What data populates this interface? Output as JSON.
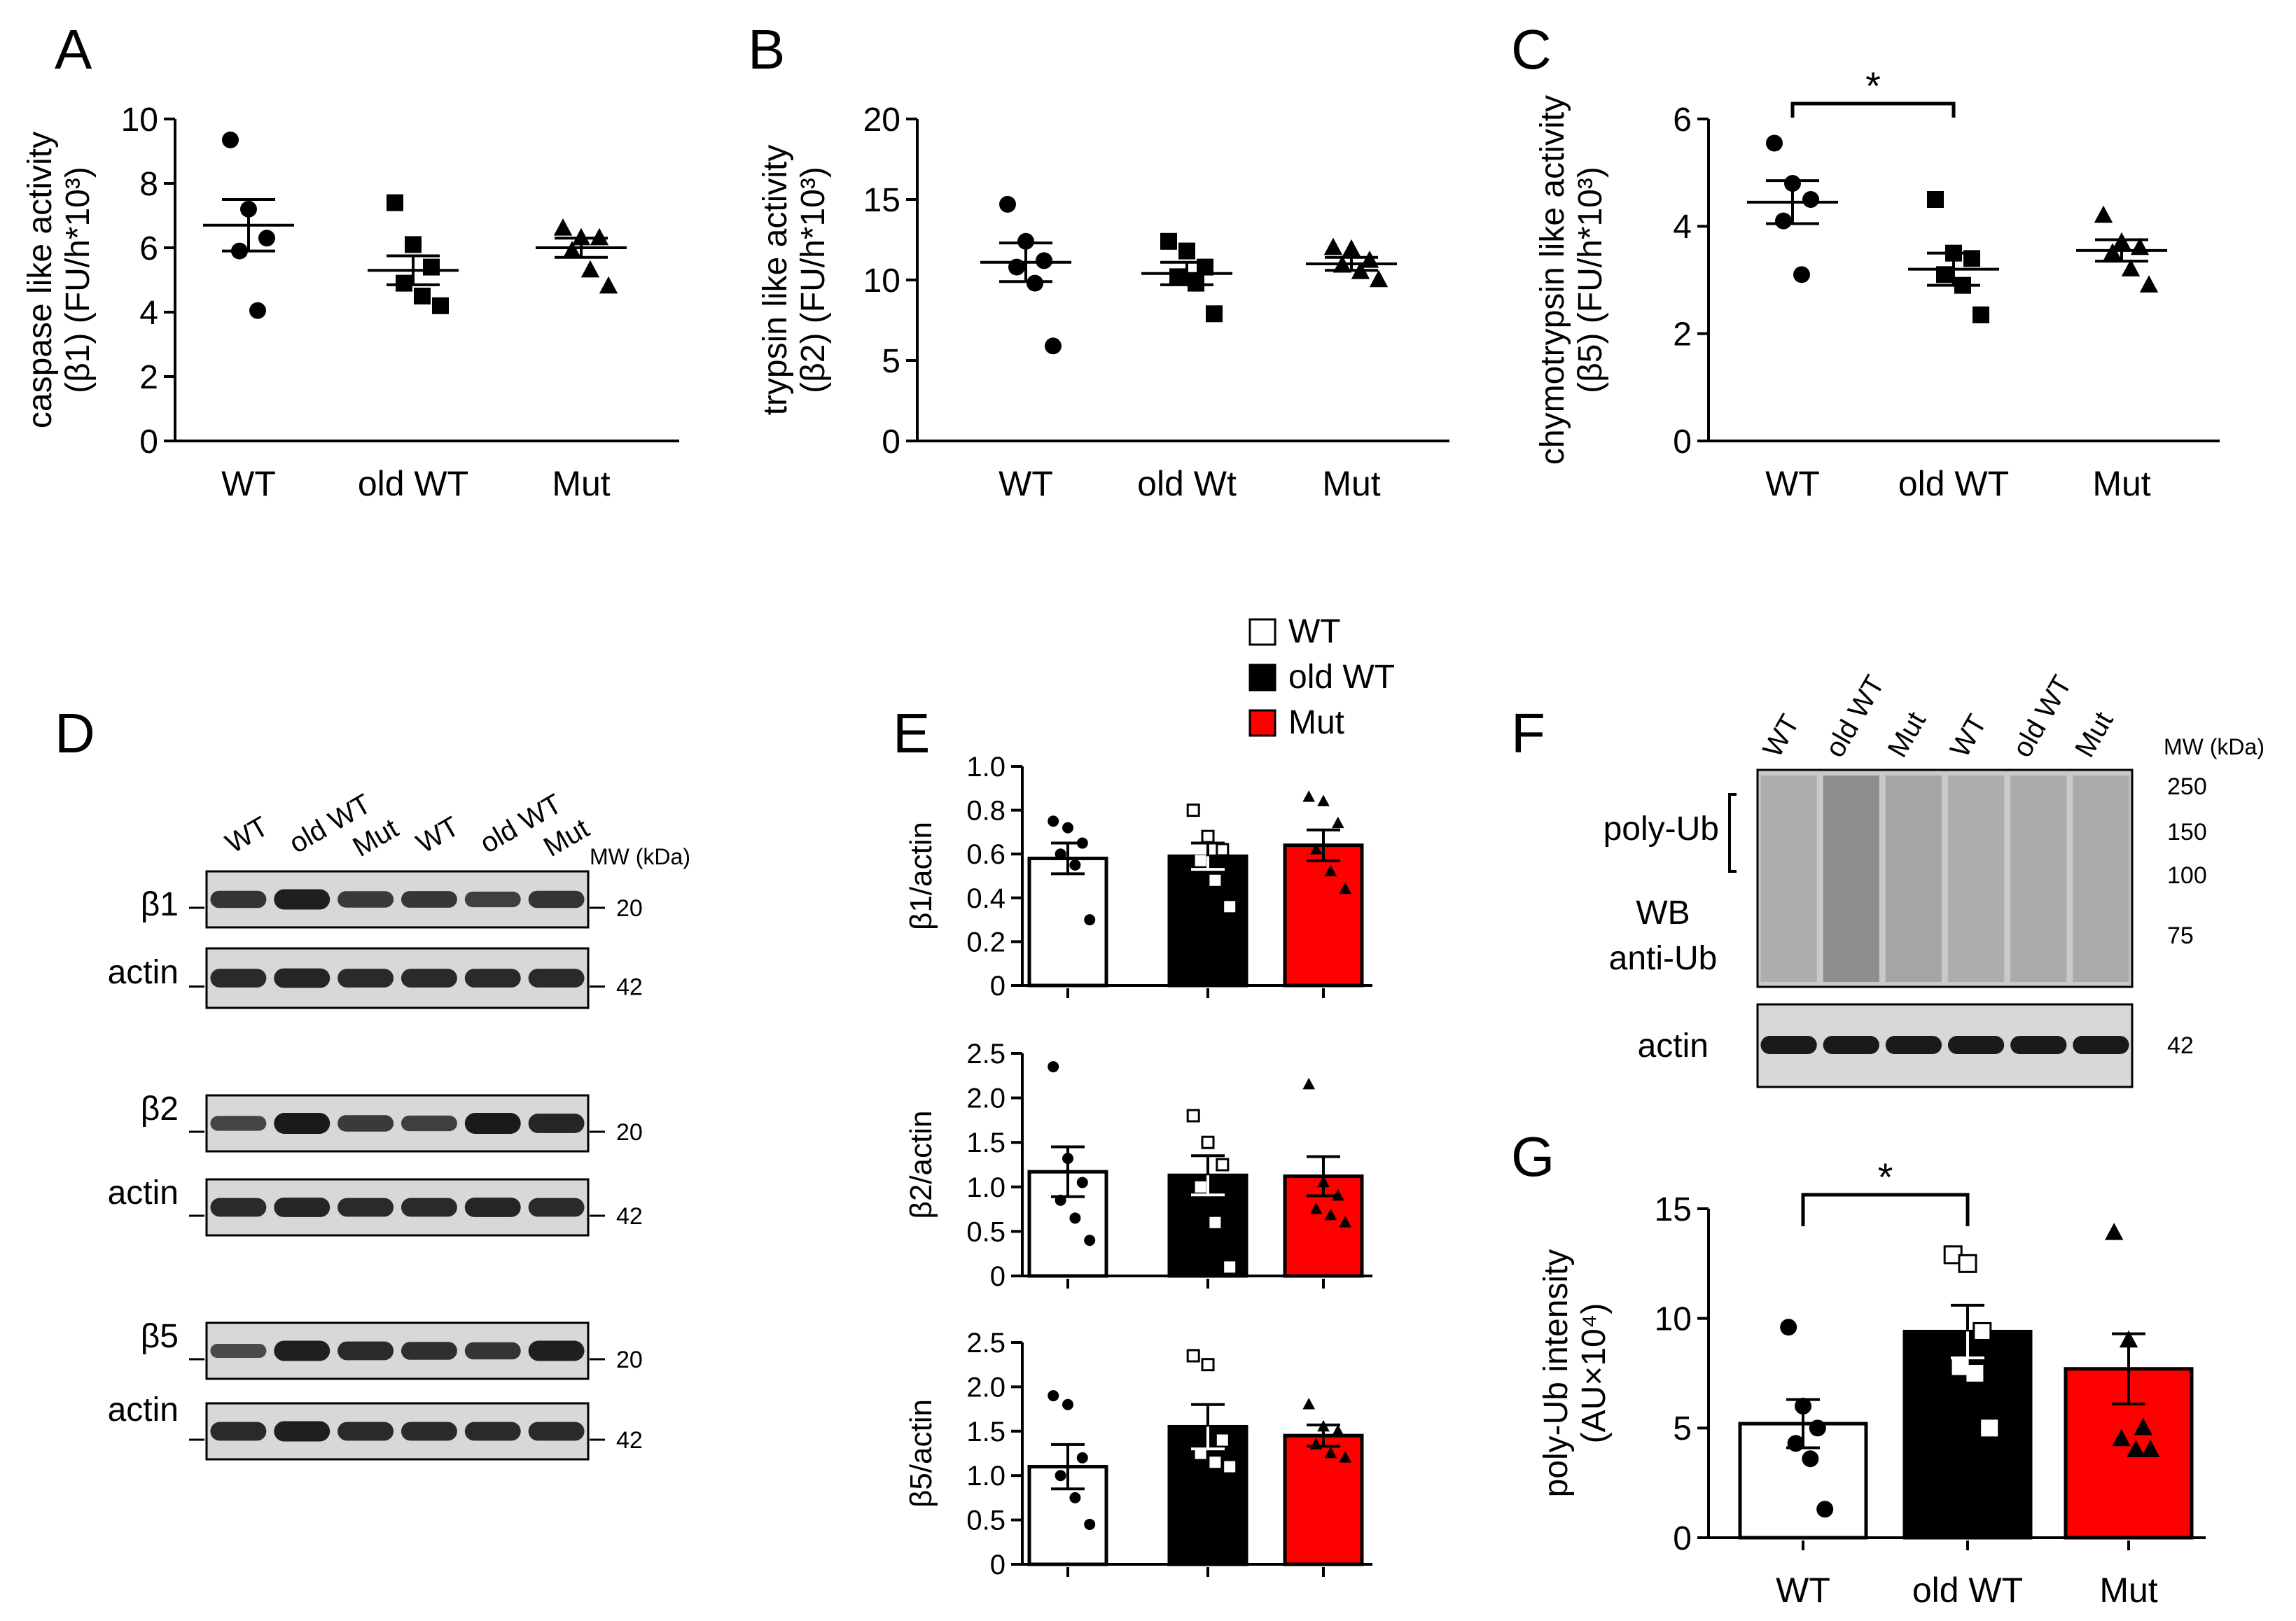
{
  "panels": {
    "A": {
      "letter": "A"
    },
    "B": {
      "letter": "B"
    },
    "C": {
      "letter": "C"
    },
    "D": {
      "letter": "D"
    },
    "E": {
      "letter": "E"
    },
    "F": {
      "letter": "F"
    },
    "G": {
      "letter": "G"
    }
  },
  "colors": {
    "WT": "#ffffff",
    "oldWT": "#000000",
    "Mut": "#ff0000"
  },
  "legend": {
    "items": [
      {
        "label": "WT",
        "color": "#ffffff"
      },
      {
        "label": "old WT",
        "color": "#000000"
      },
      {
        "label": "Mut",
        "color": "#ff0000"
      }
    ]
  },
  "chart_data": [
    {
      "id": "A",
      "type": "scatter",
      "title": "",
      "ylabel_line1": "caspase like activity",
      "ylabel_line2": "(β1) (FU/h*10³)",
      "categories": [
        "WT",
        "old WT",
        "Mut"
      ],
      "ylim": [
        0,
        10
      ],
      "yticks": [
        0,
        2,
        4,
        6,
        8,
        10
      ],
      "means": [
        6.7,
        5.3,
        6.0
      ],
      "sems": [
        0.8,
        0.45,
        0.3
      ],
      "points": [
        [
          9.35,
          7.2,
          6.3,
          5.9,
          4.05
        ],
        [
          7.4,
          6.1,
          5.4,
          4.9,
          4.5,
          4.2
        ],
        [
          6.6,
          6.3,
          6.3,
          5.9,
          5.3,
          4.8
        ]
      ],
      "significance": null
    },
    {
      "id": "B",
      "type": "scatter",
      "ylabel_line1": "trypsin like activity",
      "ylabel_line2": "(β2) (FU/h*10³)",
      "categories": [
        "WT",
        "old Wt",
        "Mut"
      ],
      "ylim": [
        0,
        20
      ],
      "yticks": [
        0,
        5,
        10,
        15,
        20
      ],
      "means": [
        11.1,
        10.4,
        11.0
      ],
      "sems": [
        1.2,
        0.7,
        0.4
      ],
      "points": [
        [
          14.7,
          12.4,
          11.2,
          10.8,
          9.8,
          5.9
        ],
        [
          12.4,
          11.8,
          10.8,
          10.2,
          9.8,
          7.9
        ],
        [
          12.0,
          11.9,
          11.2,
          10.9,
          10.5,
          10.0
        ]
      ],
      "significance": null
    },
    {
      "id": "C",
      "type": "scatter",
      "ylabel_line1": "chymotrypsin like activity",
      "ylabel_line2": "(β5) (FU/h*10³)",
      "categories": [
        "WT",
        "old WT",
        "Mut"
      ],
      "ylim": [
        0,
        6
      ],
      "yticks": [
        0,
        2,
        4,
        6
      ],
      "means": [
        4.45,
        3.2,
        3.55
      ],
      "sems": [
        0.4,
        0.3,
        0.2
      ],
      "points": [
        [
          5.55,
          4.8,
          4.5,
          4.1,
          3.1
        ],
        [
          4.5,
          3.5,
          3.4,
          3.1,
          2.9,
          2.35
        ],
        [
          4.2,
          3.7,
          3.6,
          3.5,
          3.2,
          2.9
        ]
      ],
      "significance": {
        "from": 0,
        "to": 1,
        "label": "*"
      }
    },
    {
      "id": "E1",
      "type": "bar",
      "ylabel": "β1/actin",
      "categories": [
        "WT",
        "old WT",
        "Mut"
      ],
      "ylim": [
        0,
        1.0
      ],
      "yticks": [
        "0",
        "0.2",
        "0.4",
        "0.6",
        "0.8",
        "1.0"
      ],
      "values": [
        0.58,
        0.59,
        0.64
      ],
      "sems": [
        0.07,
        0.06,
        0.07
      ],
      "points": [
        [
          0.75,
          0.72,
          0.65,
          0.6,
          0.55,
          0.3
        ],
        [
          0.8,
          0.68,
          0.62,
          0.57,
          0.48,
          0.36
        ],
        [
          0.86,
          0.84,
          0.74,
          0.62,
          0.52,
          0.44
        ]
      ]
    },
    {
      "id": "E2",
      "type": "bar",
      "ylabel": "β2/actin",
      "categories": [
        "WT",
        "old WT",
        "Mut"
      ],
      "ylim": [
        0,
        2.5
      ],
      "yticks": [
        "0",
        "0.5",
        "1.0",
        "1.5",
        "2.0",
        "2.5"
      ],
      "values": [
        1.17,
        1.13,
        1.12
      ],
      "sems": [
        0.28,
        0.22,
        0.22
      ],
      "points": [
        [
          2.35,
          1.32,
          1.05,
          0.85,
          0.65,
          0.4
        ],
        [
          1.8,
          1.5,
          1.25,
          1.0,
          0.6,
          0.1
        ],
        [
          2.15,
          1.05,
          0.9,
          0.75,
          0.68,
          0.6
        ]
      ]
    },
    {
      "id": "E3",
      "type": "bar",
      "ylabel": "β5/actin",
      "categories": [
        "WT",
        "old WT",
        "Mut"
      ],
      "ylim": [
        0,
        2.5
      ],
      "yticks": [
        "0",
        "0.5",
        "1.0",
        "1.5",
        "2.0",
        "2.5"
      ],
      "values": [
        1.1,
        1.55,
        1.45
      ],
      "sems": [
        0.25,
        0.25,
        0.12
      ],
      "points": [
        [
          1.9,
          1.8,
          1.2,
          1.0,
          0.75,
          0.45
        ],
        [
          2.35,
          2.25,
          1.4,
          1.25,
          1.15,
          1.1
        ],
        [
          1.8,
          1.55,
          1.5,
          1.35,
          1.25,
          1.2
        ]
      ]
    },
    {
      "id": "G",
      "type": "bar",
      "ylabel_line1": "poly-Ub intensity",
      "ylabel_line2": "(AU×10⁴)",
      "categories": [
        "WT",
        "old WT",
        "Mut"
      ],
      "ylim": [
        0,
        15
      ],
      "yticks": [
        0,
        5,
        10,
        15
      ],
      "values": [
        5.2,
        9.4,
        7.7
      ],
      "sems": [
        1.1,
        1.2,
        1.6
      ],
      "points": [
        [
          9.6,
          6.0,
          5.0,
          4.3,
          3.6,
          1.3
        ],
        [
          12.9,
          12.5,
          9.4,
          7.8,
          7.5,
          5.0
        ],
        [
          13.9,
          9.0,
          5.0,
          4.5,
          4.0,
          4.0
        ]
      ],
      "significance": {
        "from": 0,
        "to": 1,
        "label": "*"
      }
    }
  ],
  "blotD": {
    "lanes": [
      "WT",
      "old WT",
      "Mut",
      "WT",
      "old WT",
      "Mut"
    ],
    "mw_header": "MW (kDa)",
    "blots": [
      {
        "label": "β1",
        "mw": "20",
        "intensity": [
          0.75,
          0.95,
          0.7,
          0.72,
          0.65,
          0.75
        ]
      },
      {
        "label": "actin",
        "mw": "42",
        "intensity": [
          0.85,
          0.9,
          0.85,
          0.85,
          0.85,
          0.85
        ]
      },
      {
        "label": "β2",
        "mw": "20",
        "intensity": [
          0.6,
          1.0,
          0.7,
          0.65,
          1.0,
          0.9
        ]
      },
      {
        "label": "actin",
        "mw": "42",
        "intensity": [
          0.85,
          0.9,
          0.85,
          0.85,
          0.9,
          0.85
        ]
      },
      {
        "label": "β5",
        "mw": "20",
        "intensity": [
          0.55,
          0.95,
          0.85,
          0.8,
          0.75,
          0.95
        ]
      },
      {
        "label": "actin",
        "mw": "42",
        "intensity": [
          0.85,
          0.95,
          0.85,
          0.85,
          0.85,
          0.85
        ]
      }
    ]
  },
  "blotF": {
    "lanes": [
      "WT",
      "old WT",
      "Mut",
      "WT",
      "old WT",
      "Mut"
    ],
    "mw_header": "MW (kDa)",
    "polyub_label": "poly-Ub",
    "wb_label_line1": "WB",
    "wb_label_line2": "anti-Ub",
    "actin_label": "actin",
    "mw_markers": [
      "250",
      "150",
      "100",
      "75"
    ],
    "actin_mw": "42",
    "smear_intensity": [
      0.35,
      0.75,
      0.45,
      0.35,
      0.4,
      0.4
    ]
  }
}
